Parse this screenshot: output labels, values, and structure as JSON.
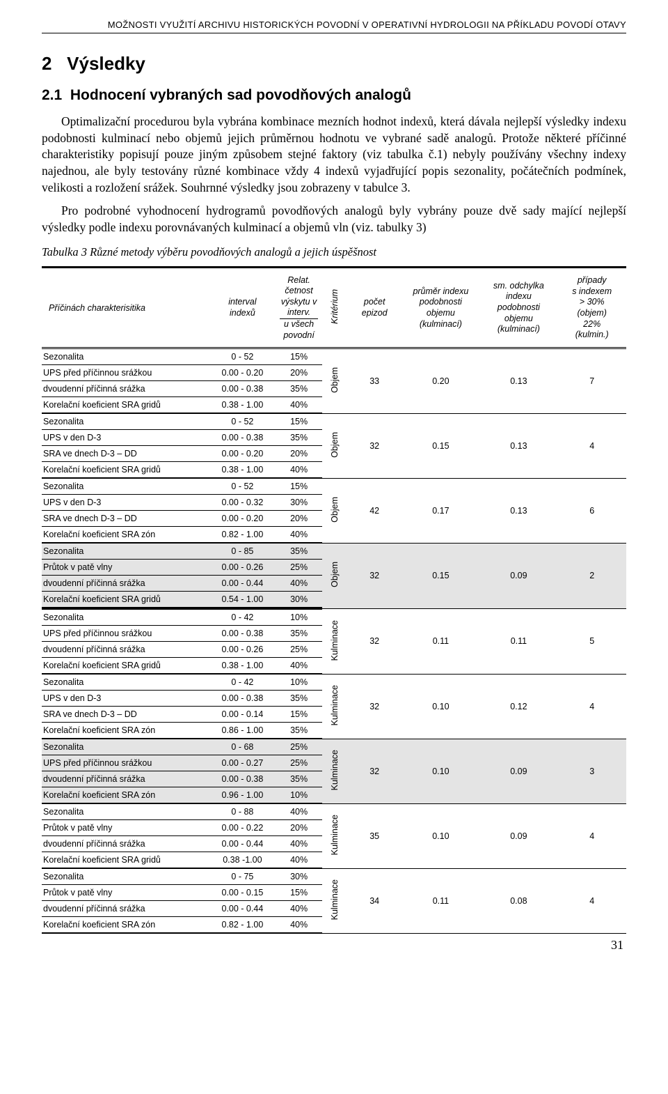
{
  "running_header": "MOŽNOSTI VYUŽITÍ ARCHIVU HISTORICKÝCH POVODNÍ V OPERATIVNÍ HYDROLOGII NA PŘÍKLADU POVODÍ OTAVY",
  "section_no": "2",
  "section_title": "Výsledky",
  "subsection_no": "2.1",
  "subsection_title": "Hodnocení vybraných sad povodňových analogů",
  "para1": "Optimalizační procedurou byla vybrána kombinace mezních hodnot indexů, která dávala nejlepší výsledky indexu podobnosti kulminací nebo objemů jejich průměrnou hodnotu ve vybrané sadě analogů. Protože některé příčinné charakteristiky popisují pouze jiným způsobem stejné faktory (viz tabulka č.1) nebyly používány všechny indexy najednou, ale byly testovány různé kombinace vždy 4 indexů vyjadřující popis sezonality, počátečních podmínek, velikosti a rozložení srážek. Souhrnné výsledky jsou zobrazeny v tabulce 3.",
  "para2": "Pro podrobné vyhodnocení hydrogramů povodňových analogů byly vybrány pouze dvě sady mající nejlepší výsledky podle indexu porovnávaných kulminací a objemů vln (viz. tabulky 3)",
  "table_caption": "Tabulka 3 Různé metody výběru povodňových analogů a jejich úspěšnost",
  "table": {
    "headers": {
      "h1_two_line_a": "Příčinách charakterisitika",
      "h2_ln1": "interval",
      "h2_ln2": "indexů",
      "h3_ln1": "Relat.",
      "h3_ln2": "četnost",
      "h3_ln3": "výskytu v",
      "h3_ln4": "interv.",
      "h3_ln5": "u všech",
      "h3_ln6": "povodní",
      "h4_vert": "Kritérium",
      "h5_ln1": "počet",
      "h5_ln2": "epizod",
      "h6_ln1": "průměr indexu",
      "h6_ln2": "podobnosti",
      "h6_ln3": "objemu",
      "h6_ln4": "(kulminací)",
      "h7_ln1": "sm. odchylka",
      "h7_ln2": "indexu",
      "h7_ln3": "podobnosti",
      "h7_ln4": "objemu",
      "h7_ln5": "(kulminací)",
      "h8_ln1": "případy",
      "h8_ln2": "s indexem",
      "h8_ln3": "> 30%",
      "h8_ln4": "(objem)",
      "h8_ln5": "22%",
      "h8_ln6": "(kulmin.)"
    },
    "groups": [
      {
        "shaded": false,
        "krit": "Objem",
        "pocet": "33",
        "prumer": "0.20",
        "sm": "0.13",
        "pripady": "7",
        "rows": [
          {
            "label": "Sezonalita",
            "interval": "0 - 52",
            "freq": "15%"
          },
          {
            "label": "UPS před příčinnou srážkou",
            "interval": "0.00 - 0.20",
            "freq": "20%"
          },
          {
            "label": "dvoudenní příčinná srážka",
            "interval": "0.00 - 0.38",
            "freq": "35%"
          },
          {
            "label": "Korelační koeficient SRA gridů",
            "interval": "0.38 - 1.00",
            "freq": "40%"
          }
        ]
      },
      {
        "shaded": false,
        "krit": "Objem",
        "pocet": "32",
        "prumer": "0.15",
        "sm": "0.13",
        "pripady": "4",
        "rows": [
          {
            "label": "Sezonalita",
            "interval": "0 - 52",
            "freq": "15%"
          },
          {
            "label": "UPS v den D-3",
            "interval": "0.00 - 0.38",
            "freq": "35%"
          },
          {
            "label": "SRA ve dnech D-3 – DD",
            "interval": "0.00 - 0.20",
            "freq": "20%"
          },
          {
            "label": "Korelační koeficient SRA gridů",
            "interval": "0.38 - 1.00",
            "freq": "40%"
          }
        ]
      },
      {
        "shaded": false,
        "krit": "Objem",
        "pocet": "42",
        "prumer": "0.17",
        "sm": "0.13",
        "pripady": "6",
        "rows": [
          {
            "label": "Sezonalita",
            "interval": "0 - 52",
            "freq": "15%"
          },
          {
            "label": "UPS v den D-3",
            "interval": "0.00 - 0.32",
            "freq": "30%"
          },
          {
            "label": "SRA ve dnech D-3 – DD",
            "interval": "0.00 - 0.20",
            "freq": "20%"
          },
          {
            "label": "Korelační koeficient SRA zón",
            "interval": "0.82 - 1.00",
            "freq": "40%"
          }
        ]
      },
      {
        "shaded": true,
        "band2end": true,
        "krit": "Objem",
        "pocet": "32",
        "prumer": "0.15",
        "sm": "0.09",
        "pripady": "2",
        "rows": [
          {
            "label": "Sezonalita",
            "interval": "0 - 85",
            "freq": "35%"
          },
          {
            "label": "Průtok v patě vlny",
            "interval": "0.00 - 0.26",
            "freq": "25%"
          },
          {
            "label": "dvoudenní příčinná srážka",
            "interval": "0.00 - 0.44",
            "freq": "40%"
          },
          {
            "label": "Korelační koeficient SRA gridů",
            "interval": "0.54 - 1.00",
            "freq": "30%"
          }
        ]
      },
      {
        "shaded": false,
        "krit": "Kulminace",
        "pocet": "32",
        "prumer": "0.11",
        "sm": "0.11",
        "pripady": "5",
        "rows": [
          {
            "label": "Sezonalita",
            "interval": "0 - 42",
            "freq": "10%"
          },
          {
            "label": "UPS před příčinnou srážkou",
            "interval": "0.00 - 0.38",
            "freq": "35%"
          },
          {
            "label": "dvoudenní příčinná srážka",
            "interval": "0.00 - 0.26",
            "freq": "25%"
          },
          {
            "label": "Korelační koeficient SRA gridů",
            "interval": "0.38 - 1.00",
            "freq": "40%"
          }
        ]
      },
      {
        "shaded": false,
        "krit": "Kulminace",
        "pocet": "32",
        "prumer": "0.10",
        "sm": "0.12",
        "pripady": "4",
        "rows": [
          {
            "label": "Sezonalita",
            "interval": "0 - 42",
            "freq": "10%"
          },
          {
            "label": "UPS v den D-3",
            "interval": "0.00 - 0.38",
            "freq": "35%"
          },
          {
            "label": "SRA ve dnech D-3 – DD",
            "interval": "0.00 - 0.14",
            "freq": "15%"
          },
          {
            "label": "Korelační koeficient SRA zón",
            "interval": "0.86 - 1.00",
            "freq": "35%"
          }
        ]
      },
      {
        "shaded": true,
        "krit": "Kulminace",
        "pocet": "32",
        "prumer": "0.10",
        "sm": "0.09",
        "pripady": "3",
        "rows": [
          {
            "label": "Sezonalita",
            "interval": "0 - 68",
            "freq": "25%"
          },
          {
            "label": "UPS před příčinnou srážkou",
            "interval": "0.00 - 0.27",
            "freq": "25%"
          },
          {
            "label": "dvoudenní příčinná srážka",
            "interval": "0.00 - 0.38",
            "freq": "35%"
          },
          {
            "label": "Korelační koeficient SRA zón",
            "interval": "0.96 - 1.00",
            "freq": "10%"
          }
        ]
      },
      {
        "shaded": false,
        "krit": "Kulminace",
        "pocet": "35",
        "prumer": "0.10",
        "sm": "0.09",
        "pripady": "4",
        "rows": [
          {
            "label": "Sezonalita",
            "interval": "0 - 88",
            "freq": "40%"
          },
          {
            "label": "Průtok v patě vlny",
            "interval": "0.00 - 0.22",
            "freq": "20%"
          },
          {
            "label": "dvoudenní příčinná srážka",
            "interval": "0.00 - 0.44",
            "freq": "40%"
          },
          {
            "label": "Korelační koeficient SRA gridů",
            "interval": "0.38 -1.00",
            "freq": "40%"
          }
        ]
      },
      {
        "shaded": false,
        "krit": "Kulminace",
        "pocet": "34",
        "prumer": "0.11",
        "sm": "0.08",
        "pripady": "4",
        "rows": [
          {
            "label": "Sezonalita",
            "interval": "0 - 75",
            "freq": "30%"
          },
          {
            "label": "Průtok v patě vlny",
            "interval": "0.00 - 0.15",
            "freq": "15%"
          },
          {
            "label": "dvoudenní příčinná srážka",
            "interval": "0.00 - 0.44",
            "freq": "40%"
          },
          {
            "label": "Korelační koeficient SRA zón",
            "interval": "0.82 - 1.00",
            "freq": "40%"
          }
        ]
      }
    ]
  },
  "page_number": "31"
}
